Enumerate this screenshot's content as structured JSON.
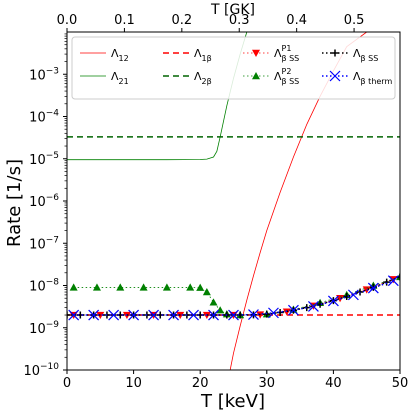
{
  "chart_data": {
    "type": "line",
    "xlabel": "T [keV]",
    "ylabel": "Rate [1/s]",
    "top_xlabel": "T [GK]",
    "xlim": [
      0,
      50
    ],
    "ylim": [
      1e-10,
      0.01
    ],
    "yscale": "log",
    "top_xlim": [
      0,
      0.58
    ],
    "top_xticks": [
      0.0,
      0.1,
      0.2,
      0.3,
      0.4,
      0.5
    ],
    "top_xtick_labels": [
      "0.0",
      "0.1",
      "0.2",
      "0.3",
      "0.4",
      "0.5"
    ],
    "xticks": [
      0,
      10,
      20,
      30,
      40,
      50
    ],
    "xtick_labels": [
      "0",
      "10",
      "20",
      "30",
      "40",
      "50"
    ],
    "yticks": [
      1e-10,
      1e-09,
      1e-08,
      1e-07,
      1e-06,
      1e-05,
      0.0001,
      0.001
    ],
    "ytick_labels": [
      {
        "base": "10",
        "exp": "−10"
      },
      {
        "base": "10",
        "exp": "−9"
      },
      {
        "base": "10",
        "exp": "−8"
      },
      {
        "base": "10",
        "exp": "−7"
      },
      {
        "base": "10",
        "exp": "−6"
      },
      {
        "base": "10",
        "exp": "−5"
      },
      {
        "base": "10",
        "exp": "−4"
      },
      {
        "base": "10",
        "exp": "−3"
      }
    ],
    "grid": false,
    "legend_placement": "top",
    "series": [
      {
        "key": "L12",
        "legend": {
          "main": "Λ",
          "sub": "12",
          "sup": ""
        },
        "color": "#ff0000",
        "dash": "solid",
        "width": 0.8,
        "marker": "none",
        "x": [
          24.5,
          25,
          26,
          27,
          28,
          29,
          30,
          32,
          34,
          36,
          38,
          40,
          42,
          45
        ],
        "y": [
          1e-10,
          2.5e-10,
          1.1e-09,
          4.5e-09,
          1.7e-08,
          6e-08,
          2e-07,
          1.6e-06,
          1.1e-05,
          6.5e-05,
          0.0003,
          0.0012,
          0.0045,
          0.01
        ]
      },
      {
        "key": "L21",
        "legend": {
          "main": "Λ",
          "sub": "21",
          "sup": ""
        },
        "color": "#008000",
        "dash": "solid",
        "width": 0.8,
        "marker": "none",
        "x": [
          0,
          5,
          10,
          15,
          20,
          21,
          22,
          22.5,
          23,
          24,
          25,
          26,
          27
        ],
        "y": [
          9.5e-06,
          9.5e-06,
          9.5e-06,
          9.5e-06,
          9.6e-06,
          9.8e-06,
          1.1e-05,
          1.5e-05,
          3.3e-05,
          0.00018,
          0.0008,
          0.003,
          0.01
        ]
      },
      {
        "key": "L1b",
        "legend": {
          "main": "Λ",
          "sub": "1β",
          "sup": ""
        },
        "color": "#ff0000",
        "dash": "dashed",
        "width": 1.5,
        "marker": "none",
        "x": [
          0,
          50
        ],
        "y": [
          2e-09,
          2e-09
        ]
      },
      {
        "key": "L2b",
        "legend": {
          "main": "Λ",
          "sub": "2β",
          "sup": ""
        },
        "color": "#006400",
        "dash": "dashed",
        "width": 1.5,
        "marker": "none",
        "x": [
          0,
          50
        ],
        "y": [
          3.3e-05,
          3.3e-05
        ]
      },
      {
        "key": "LP1",
        "legend": {
          "main": "Λ",
          "sub": "β SS",
          "sup": "P1"
        },
        "color": "#ff0000",
        "dash": "dotted",
        "width": 0.8,
        "marker": "tri-down",
        "x": [
          1,
          5,
          9,
          13,
          17,
          21,
          25,
          29,
          33,
          37,
          41,
          45,
          49
        ],
        "y": [
          2e-09,
          2e-09,
          2e-09,
          2e-09,
          2e-09,
          2e-09,
          2e-09,
          2.05e-09,
          2.4e-09,
          3.3e-09,
          5e-09,
          8e-09,
          1.4e-08
        ]
      },
      {
        "key": "LP2",
        "legend": {
          "main": "Λ",
          "sub": "β SS",
          "sup": "P2"
        },
        "color": "#008000",
        "dash": "dotted",
        "width": 0.8,
        "marker": "tri-up",
        "x": [
          1,
          4.5,
          8,
          11.5,
          15,
          18.5,
          20,
          21,
          22,
          23,
          24,
          26,
          30,
          34,
          38,
          42,
          46,
          50
        ],
        "y": [
          9e-09,
          9e-09,
          9e-09,
          9e-09,
          9e-09,
          9e-09,
          8.9e-09,
          7e-09,
          4e-09,
          2.6e-09,
          2.1e-09,
          2e-09,
          2.1e-09,
          2.7e-09,
          3.9e-09,
          6e-09,
          1e-08,
          1.6e-08
        ]
      },
      {
        "key": "LSS",
        "legend": {
          "main": "Λ",
          "sub": "β SS",
          "sup": ""
        },
        "color": "#000000",
        "dash": "dotted",
        "width": 1.5,
        "marker": "plus",
        "x": [
          0,
          2,
          4,
          6,
          8,
          10,
          12,
          14,
          16,
          18,
          20,
          22,
          24,
          26,
          28,
          30,
          32,
          34,
          36,
          38,
          40,
          42,
          44,
          46,
          48,
          50
        ],
        "y": [
          2e-09,
          2e-09,
          2e-09,
          2e-09,
          2e-09,
          2e-09,
          2e-09,
          2e-09,
          2e-09,
          2e-09,
          2e-09,
          2e-09,
          2e-09,
          2e-09,
          2.02e-09,
          2.1e-09,
          2.3e-09,
          2.6e-09,
          3e-09,
          3.6e-09,
          4.4e-09,
          5.5e-09,
          7e-09,
          9e-09,
          1.2e-08,
          1.6e-08
        ]
      },
      {
        "key": "Lth",
        "legend": {
          "main": "Λ",
          "sub": "β therm",
          "sup": ""
        },
        "color": "#0000ff",
        "dash": "dotted",
        "width": 1.5,
        "marker": "x",
        "x": [
          1,
          4,
          7,
          10,
          13,
          16,
          19,
          22,
          25,
          28,
          31,
          34,
          37,
          40,
          43,
          46,
          49
        ],
        "y": [
          2e-09,
          2e-09,
          2e-09,
          2e-09,
          2e-09,
          2e-09,
          2e-09,
          2e-09,
          2e-09,
          2.05e-09,
          2.25e-09,
          2.6e-09,
          3.2e-09,
          4.3e-09,
          6e-09,
          8.7e-09,
          1.3e-08
        ]
      }
    ]
  }
}
